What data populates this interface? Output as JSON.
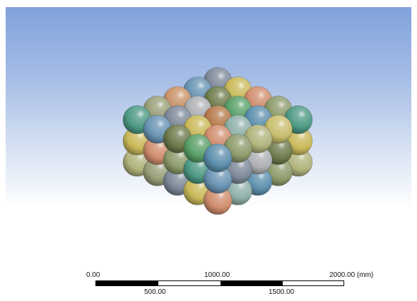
{
  "viewport": {
    "background_top": "#82a2dc",
    "background_bottom": "#ffffff",
    "model": "sphere-packing",
    "sphere_colors": [
      "#c9936a",
      "#c9b95a",
      "#5d8fae",
      "#9aa07a",
      "#6e7b4c",
      "#8fb0a8",
      "#4e9a84",
      "#aeb0b4",
      "#d08e6e",
      "#c8be6e",
      "#7e8a9a",
      "#5aa06a",
      "#b1b47c",
      "#6a94b4",
      "#b67a4a",
      "#8e9c6c"
    ]
  },
  "scale_bar": {
    "labels_top": [
      "0.00",
      "1000.00",
      "2000.00 (mm)"
    ],
    "labels_bottom": [
      "500.00",
      "1500.00"
    ],
    "unit": "mm"
  }
}
